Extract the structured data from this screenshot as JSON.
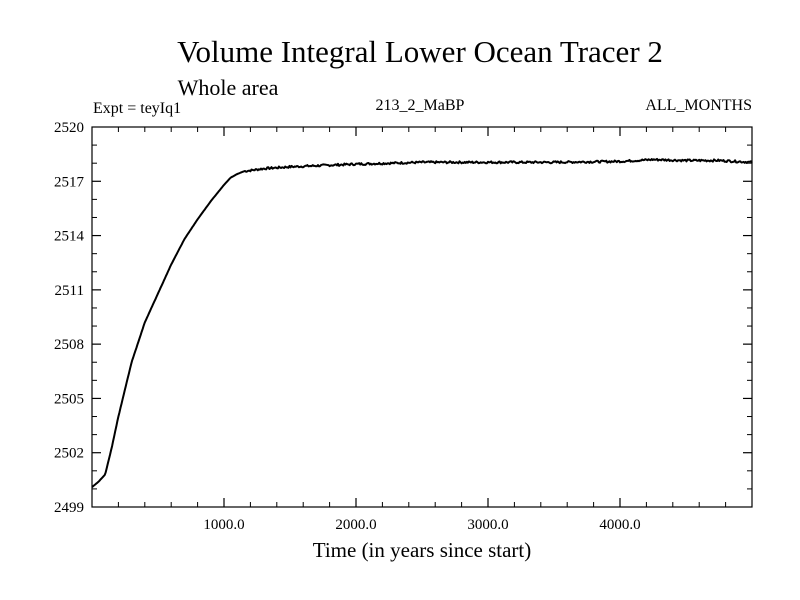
{
  "chart_data": {
    "type": "line",
    "title": "Volume Integral Lower Ocean Tracer 2",
    "subtitle": "Whole area",
    "annotations": {
      "left": "Expt = teyIq1",
      "center": "213_2_MaBP",
      "right": "ALL_MONTHS"
    },
    "xlabel": "Time (in years since start)",
    "ylabel": "",
    "xlim": [
      0,
      5000
    ],
    "ylim": [
      2499,
      2520
    ],
    "x_ticks": [
      1000,
      2000,
      3000,
      4000
    ],
    "x_tick_labels": [
      "1000.0",
      "2000.0",
      "3000.0",
      "4000.0"
    ],
    "y_ticks": [
      2499,
      2502,
      2505,
      2508,
      2511,
      2514,
      2517,
      2520
    ],
    "y_tick_labels": [
      "2499",
      "2502",
      "2505",
      "2508",
      "2511",
      "2514",
      "2517",
      "2520"
    ],
    "grid": false,
    "series": [
      {
        "name": "Lower Ocean Tracer 2",
        "x": [
          0,
          50,
          100,
          150,
          200,
          300,
          400,
          500,
          600,
          700,
          800,
          900,
          1000,
          1050,
          1100,
          1150,
          1200,
          1300,
          1500,
          2000,
          2500,
          3000,
          3500,
          4000,
          4250,
          4500,
          4750,
          5000
        ],
        "values": [
          2500.1,
          2500.4,
          2500.8,
          2502.3,
          2504.0,
          2507.0,
          2509.2,
          2510.8,
          2512.4,
          2513.8,
          2514.9,
          2515.9,
          2516.8,
          2517.2,
          2517.4,
          2517.55,
          2517.6,
          2517.7,
          2517.8,
          2517.95,
          2518.05,
          2518.05,
          2518.05,
          2518.1,
          2518.2,
          2518.15,
          2518.15,
          2518.05
        ]
      }
    ]
  }
}
